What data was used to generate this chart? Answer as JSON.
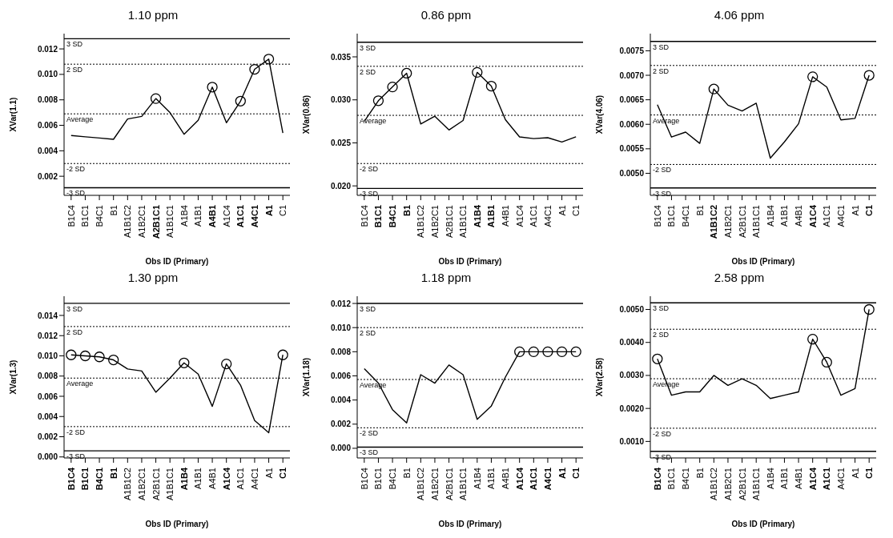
{
  "chart_data": [
    {
      "type": "line",
      "title": "1.10 ppm",
      "xlabel": "Obs ID (Primary)",
      "ylabel": "XVar(1.1)",
      "categories": [
        "B1C4",
        "B1C1",
        "B4C1",
        "B1",
        "A1B1C2",
        "A1B2C1",
        "A2B1C1",
        "A1B1C1",
        "A1B4",
        "A1B1",
        "A4B1",
        "A1C4",
        "A1C1",
        "A4C1",
        "A1",
        "C1"
      ],
      "series": [
        {
          "type": "line",
          "color": "#000000",
          "marker": "none",
          "values": [
            0.0052,
            0.0051,
            0.005,
            0.0049,
            0.0065,
            0.0067,
            0.0081,
            0.007,
            0.0053,
            0.0064,
            0.009,
            0.0062,
            0.0079,
            0.0104,
            0.0112,
            0.0054
          ]
        },
        {
          "type": "scatter",
          "color": "#000000",
          "marker": "circle",
          "values": [
            null,
            null,
            null,
            null,
            null,
            null,
            0.0081,
            null,
            null,
            null,
            0.009,
            null,
            0.0079,
            0.0104,
            0.0112,
            null
          ]
        }
      ],
      "ylim": [
        0.0005,
        0.0132
      ],
      "yticks": [
        {
          "value": 0.002,
          "label": "0.002"
        },
        {
          "value": 0.004,
          "label": "0.004"
        },
        {
          "value": 0.006,
          "label": "0.006"
        },
        {
          "value": 0.008,
          "label": "0.008"
        },
        {
          "value": 0.01,
          "label": "0.010"
        },
        {
          "value": 0.012,
          "label": "0.012"
        }
      ],
      "ref_lines": [
        {
          "axis": "y",
          "value": 0.0128,
          "label": "3 SD",
          "line_style": "solid",
          "color": "#000000"
        },
        {
          "axis": "y",
          "value": 0.0108,
          "label": "2 SD",
          "line_style": "dotted",
          "color": "#000000"
        },
        {
          "axis": "y",
          "value": 0.0069,
          "label": "Average",
          "line_style": "dotted",
          "color": "#000000"
        },
        {
          "axis": "y",
          "value": 0.003,
          "label": "-2 SD",
          "line_style": "dotted",
          "color": "#000000"
        },
        {
          "axis": "y",
          "value": 0.0011,
          "label": "-3 SD",
          "line_style": "solid",
          "color": "#000000"
        }
      ]
    },
    {
      "type": "line",
      "title": "0.86 ppm",
      "xlabel": "Obs ID (Primary)",
      "ylabel": "XVar(0.86)",
      "categories": [
        "B1C4",
        "B1C1",
        "B4C1",
        "B1",
        "A1B1C2",
        "A1B2C1",
        "A2B1C1",
        "A1B1C1",
        "A1B4",
        "A1B1",
        "A4B1",
        "A1C4",
        "A1C1",
        "A4C1",
        "A1",
        "C1"
      ],
      "series": [
        {
          "type": "line",
          "color": "#000000",
          "marker": "none",
          "values": [
            0.0275,
            0.0299,
            0.0315,
            0.0331,
            0.0272,
            0.0281,
            0.0265,
            0.0276,
            0.0332,
            0.0316,
            0.0277,
            0.0257,
            0.0255,
            0.0256,
            0.0251,
            0.0257
          ]
        },
        {
          "type": "scatter",
          "color": "#000000",
          "marker": "circle",
          "values": [
            null,
            0.0299,
            0.0315,
            0.0331,
            null,
            null,
            null,
            null,
            0.0332,
            0.0316,
            null,
            null,
            null,
            null,
            null,
            null
          ]
        }
      ],
      "ylim": [
        0.0189,
        0.0377
      ],
      "yticks": [
        {
          "value": 0.02,
          "label": "0.020"
        },
        {
          "value": 0.025,
          "label": "0.025"
        },
        {
          "value": 0.03,
          "label": "0.030"
        },
        {
          "value": 0.035,
          "label": "0.035"
        }
      ],
      "ref_lines": [
        {
          "axis": "y",
          "value": 0.0367,
          "label": "3 SD",
          "line_style": "solid",
          "color": "#000000"
        },
        {
          "axis": "y",
          "value": 0.0339,
          "label": "2 SD",
          "line_style": "dotted",
          "color": "#000000"
        },
        {
          "axis": "y",
          "value": 0.0282,
          "label": "Average",
          "line_style": "dotted",
          "color": "#000000"
        },
        {
          "axis": "y",
          "value": 0.0226,
          "label": "-2 SD",
          "line_style": "dotted",
          "color": "#000000"
        },
        {
          "axis": "y",
          "value": 0.0197,
          "label": "-3 SD",
          "line_style": "solid",
          "color": "#000000"
        }
      ]
    },
    {
      "type": "line",
      "title": "4.06 ppm",
      "xlabel": "Obs ID (Primary)",
      "ylabel": "XVar(4.06)",
      "categories": [
        "B1C4",
        "B1C1",
        "B4C1",
        "B1",
        "A1B1C2",
        "A1B2C1",
        "A2B1C1",
        "A1B1C1",
        "A1B4",
        "A1B1",
        "A4B1",
        "A1C4",
        "A1C1",
        "A4C1",
        "A1",
        "C1"
      ],
      "series": [
        {
          "type": "line",
          "color": "#000000",
          "marker": "none",
          "values": [
            0.0064,
            0.00574,
            0.00584,
            0.00561,
            0.00672,
            0.00639,
            0.00627,
            0.00643,
            0.00531,
            0.00564,
            0.00601,
            0.00697,
            0.00676,
            0.00609,
            0.00612,
            0.007
          ]
        },
        {
          "type": "scatter",
          "color": "#000000",
          "marker": "circle",
          "values": [
            null,
            null,
            null,
            null,
            0.00672,
            null,
            null,
            null,
            null,
            null,
            null,
            0.00697,
            null,
            null,
            null,
            0.007
          ]
        }
      ],
      "ylim": [
        0.00455,
        0.00785
      ],
      "yticks": [
        {
          "value": 0.005,
          "label": "0.0050"
        },
        {
          "value": 0.0055,
          "label": "0.0055"
        },
        {
          "value": 0.006,
          "label": "0.0060"
        },
        {
          "value": 0.0065,
          "label": "0.0065"
        },
        {
          "value": 0.007,
          "label": "0.0070"
        },
        {
          "value": 0.0075,
          "label": "0.0075"
        }
      ],
      "ref_lines": [
        {
          "axis": "y",
          "value": 0.00769,
          "label": "3 SD",
          "line_style": "solid",
          "color": "#000000"
        },
        {
          "axis": "y",
          "value": 0.0072,
          "label": "2 SD",
          "line_style": "dotted",
          "color": "#000000"
        },
        {
          "axis": "y",
          "value": 0.00619,
          "label": "Average",
          "line_style": "dotted",
          "color": "#000000"
        },
        {
          "axis": "y",
          "value": 0.00518,
          "label": "-2 SD",
          "line_style": "dotted",
          "color": "#000000"
        },
        {
          "axis": "y",
          "value": 0.0047,
          "label": "-3 SD",
          "line_style": "solid",
          "color": "#000000"
        }
      ]
    },
    {
      "type": "line",
      "title": "1.30 ppm",
      "xlabel": "Obs ID (Primary)",
      "ylabel": "XVar(1.3)",
      "categories": [
        "B1C4",
        "B1C1",
        "B4C1",
        "B1",
        "A1B1C2",
        "A1B2C1",
        "A2B1C1",
        "A1B1C1",
        "A1B4",
        "A1B1",
        "A4B1",
        "A1C4",
        "A1C1",
        "A4C1",
        "A1",
        "C1"
      ],
      "series": [
        {
          "type": "line",
          "color": "#000000",
          "marker": "none",
          "values": [
            0.0101,
            0.01,
            0.0099,
            0.0096,
            0.0087,
            0.0085,
            0.0064,
            0.0078,
            0.0093,
            0.0082,
            0.005,
            0.0092,
            0.0071,
            0.0036,
            0.0024,
            0.0101
          ]
        },
        {
          "type": "scatter",
          "color": "#000000",
          "marker": "circle",
          "values": [
            0.0101,
            0.01,
            0.0099,
            0.0096,
            null,
            null,
            null,
            null,
            0.0093,
            null,
            null,
            0.0092,
            null,
            null,
            null,
            0.0101
          ]
        }
      ],
      "ylim": [
        -0.0001,
        0.0159
      ],
      "yticks": [
        {
          "value": 0,
          "label": "0.000"
        },
        {
          "value": 0.002,
          "label": "0.002"
        },
        {
          "value": 0.004,
          "label": "0.004"
        },
        {
          "value": 0.006,
          "label": "0.006"
        },
        {
          "value": 0.008,
          "label": "0.008"
        },
        {
          "value": 0.01,
          "label": "0.010"
        },
        {
          "value": 0.012,
          "label": "0.012"
        },
        {
          "value": 0.014,
          "label": "0.014"
        }
      ],
      "ref_lines": [
        {
          "axis": "y",
          "value": 0.0152,
          "label": "3 SD",
          "line_style": "solid",
          "color": "#000000"
        },
        {
          "axis": "y",
          "value": 0.0129,
          "label": "2 SD",
          "line_style": "dotted",
          "color": "#000000"
        },
        {
          "axis": "y",
          "value": 0.0078,
          "label": "Average",
          "line_style": "dotted",
          "color": "#000000"
        },
        {
          "axis": "y",
          "value": 0.003,
          "label": "-2 SD",
          "line_style": "dotted",
          "color": "#000000"
        },
        {
          "axis": "y",
          "value": 0.0006,
          "label": "-3 SD",
          "line_style": "solid",
          "color": "#000000"
        }
      ]
    },
    {
      "type": "line",
      "title": "1.18 ppm",
      "xlabel": "Obs ID (Primary)",
      "ylabel": "XVar(1.18)",
      "categories": [
        "B1C4",
        "B1C1",
        "B4C1",
        "B1",
        "A1B1C2",
        "A1B2C1",
        "A2B1C1",
        "A1B1C1",
        "A1B4",
        "A1B1",
        "A4B1",
        "A1C4",
        "A1C1",
        "A4C1",
        "A1",
        "C1"
      ],
      "series": [
        {
          "type": "line",
          "color": "#000000",
          "marker": "none",
          "values": [
            0.0066,
            0.0054,
            0.0032,
            0.0021,
            0.0061,
            0.0054,
            0.0069,
            0.0061,
            0.0024,
            0.0035,
            0.0059,
            0.008,
            0.008,
            0.008,
            0.008,
            0.008
          ]
        },
        {
          "type": "scatter",
          "color": "#000000",
          "marker": "circle",
          "values": [
            null,
            null,
            null,
            null,
            null,
            null,
            null,
            null,
            null,
            null,
            null,
            0.008,
            0.008,
            0.008,
            0.008,
            0.008
          ]
        }
      ],
      "ylim": [
        -0.0008,
        0.0126
      ],
      "yticks": [
        {
          "value": 0,
          "label": "0.000"
        },
        {
          "value": 0.002,
          "label": "0.002"
        },
        {
          "value": 0.004,
          "label": "0.004"
        },
        {
          "value": 0.006,
          "label": "0.006"
        },
        {
          "value": 0.008,
          "label": "0.008"
        },
        {
          "value": 0.01,
          "label": "0.010"
        },
        {
          "value": 0.012,
          "label": "0.012"
        }
      ],
      "ref_lines": [
        {
          "axis": "y",
          "value": 0.012,
          "label": "3 SD",
          "line_style": "solid",
          "color": "#000000"
        },
        {
          "axis": "y",
          "value": 0.01,
          "label": "2 SD",
          "line_style": "dotted",
          "color": "#000000"
        },
        {
          "axis": "y",
          "value": 0.0057,
          "label": "Average",
          "line_style": "dotted",
          "color": "#000000"
        },
        {
          "axis": "y",
          "value": 0.0017,
          "label": "-2 SD",
          "line_style": "dotted",
          "color": "#000000"
        },
        {
          "axis": "y",
          "value": 0.0001,
          "label": "-3 SD",
          "line_style": "solid",
          "color": "#000000"
        }
      ]
    },
    {
      "type": "line",
      "title": "2.58 ppm",
      "xlabel": "Obs ID (Primary)",
      "ylabel": "XVar(2.58)",
      "categories": [
        "B1C4",
        "B1C1",
        "B4C1",
        "B1",
        "A1B1C2",
        "A1B2C1",
        "A2B1C1",
        "A1B1C1",
        "A1B4",
        "A1B1",
        "A4B1",
        "A1C4",
        "A1C1",
        "A4C1",
        "A1",
        "C1"
      ],
      "series": [
        {
          "type": "line",
          "color": "#000000",
          "marker": "none",
          "values": [
            0.0035,
            0.0024,
            0.0025,
            0.0025,
            0.003,
            0.0027,
            0.0029,
            0.0027,
            0.0023,
            0.0024,
            0.0025,
            0.0041,
            0.0034,
            0.0024,
            0.0026,
            0.005
          ]
        },
        {
          "type": "scatter",
          "color": "#000000",
          "marker": "circle",
          "values": [
            0.0035,
            null,
            null,
            null,
            null,
            null,
            null,
            null,
            null,
            null,
            null,
            0.0041,
            0.0034,
            null,
            null,
            0.005
          ]
        }
      ],
      "ylim": [
        0.0005,
        0.0054
      ],
      "yticks": [
        {
          "value": 0.001,
          "label": "0.0010"
        },
        {
          "value": 0.002,
          "label": "0.0020"
        },
        {
          "value": 0.003,
          "label": "0.0030"
        },
        {
          "value": 0.004,
          "label": "0.0040"
        },
        {
          "value": 0.005,
          "label": "0.0050"
        }
      ],
      "ref_lines": [
        {
          "axis": "y",
          "value": 0.0052,
          "label": "3 SD",
          "line_style": "solid",
          "color": "#000000"
        },
        {
          "axis": "y",
          "value": 0.0044,
          "label": "2 SD",
          "line_style": "dotted",
          "color": "#000000"
        },
        {
          "axis": "y",
          "value": 0.0029,
          "label": "Average",
          "line_style": "dotted",
          "color": "#000000"
        },
        {
          "axis": "y",
          "value": 0.0014,
          "label": "-2 SD",
          "line_style": "dotted",
          "color": "#000000"
        },
        {
          "axis": "y",
          "value": 0.0007,
          "label": "-3 SD",
          "line_style": "solid",
          "color": "#000000"
        }
      ]
    }
  ]
}
